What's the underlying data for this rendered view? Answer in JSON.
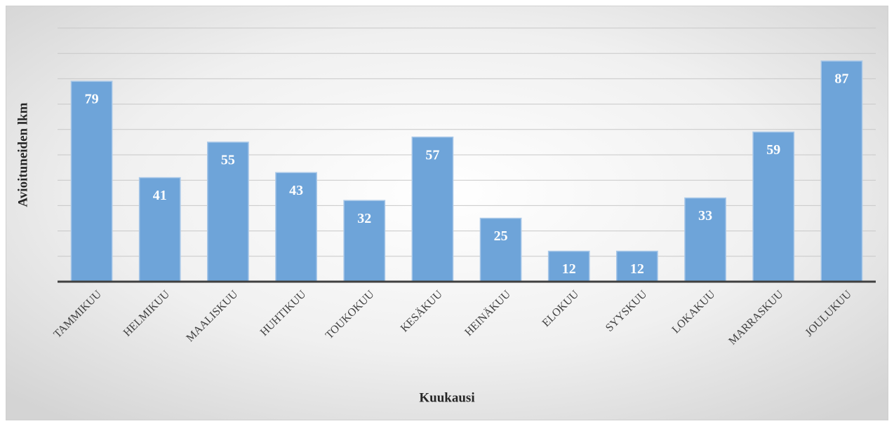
{
  "chart_data": {
    "type": "bar",
    "categories": [
      "TAMMIKUU",
      "HELMIKUU",
      "MAALISKUU",
      "HUHTIKUU",
      "TOUKOKUU",
      "KESÄKUU",
      "HEINÄKUU",
      "ELOKUU",
      "SYYSKUU",
      "LOKAKUU",
      "MARRASKUU",
      "JOULUKUU"
    ],
    "values": [
      79,
      41,
      55,
      43,
      32,
      57,
      25,
      12,
      12,
      33,
      59,
      87
    ],
    "color": "#6ea4d9",
    "x_label": "Kuukausi",
    "y_label": "Avioituneiden lkm",
    "ylim": [
      0,
      100
    ],
    "yticks": [
      0,
      10,
      20,
      30,
      40,
      50,
      60,
      70,
      80,
      90,
      100
    ],
    "grid": true
  }
}
